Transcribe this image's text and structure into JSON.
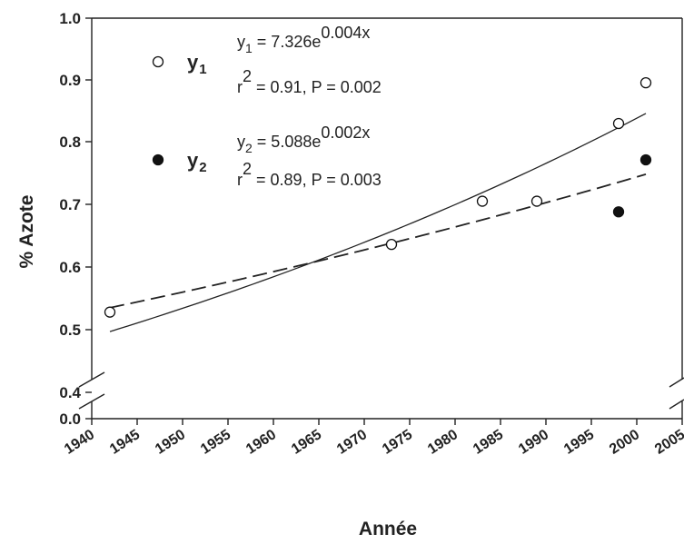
{
  "chart_data": {
    "type": "scatter",
    "xlabel": "Année",
    "ylabel": "% Azote",
    "xlim": [
      1940,
      2005
    ],
    "xticks": [
      "1940",
      "1945",
      "1950",
      "1955",
      "1960",
      "1965",
      "1970",
      "1975",
      "1980",
      "1985",
      "1990",
      "1995",
      "2000",
      "2005"
    ],
    "yticks": [
      "0.0",
      "0.4",
      "0.5",
      "0.6",
      "0.7",
      "0.8",
      "0.9",
      "1.0"
    ],
    "axis_break": [
      0.0,
      0.4
    ],
    "series": [
      {
        "name": "y1",
        "marker": "open-circle",
        "line": "solid",
        "points": [
          {
            "x": 1942,
            "y": 0.528
          },
          {
            "x": 1973,
            "y": 0.636
          },
          {
            "x": 1983,
            "y": 0.705
          },
          {
            "x": 1989,
            "y": 0.705
          },
          {
            "x": 1998,
            "y": 0.829
          },
          {
            "x": 2001,
            "y": 0.894
          }
        ],
        "fit": {
          "a": 7.326,
          "b": 0.004,
          "x0": 1942,
          "y0": 0.497,
          "x1": 2001,
          "y1": 0.845
        },
        "equation": {
          "lhs": "y",
          "sub": "1",
          "rhs": " = 7.326e",
          "exp": "0.004x"
        },
        "stats": {
          "r": "r",
          "sup": "2",
          "text": " = 0.91, P = 0.002"
        }
      },
      {
        "name": "y2",
        "marker": "filled-circle",
        "line": "dashed",
        "points": [
          {
            "x": 1998,
            "y": 0.688
          },
          {
            "x": 2001,
            "y": 0.771
          }
        ],
        "fit": {
          "a": 5.088,
          "b": 0.002,
          "x0": 1942,
          "y0": 0.535,
          "x1": 2001,
          "y1": 0.748
        },
        "equation": {
          "lhs": "y",
          "sub": "2",
          "rhs": " = 5.088e",
          "exp": "0.002x"
        },
        "stats": {
          "r": "r",
          "sup": "2",
          "text": " = 0.89, P = 0.003"
        }
      }
    ],
    "legend": [
      {
        "label": "y",
        "sub": "1",
        "marker": "open-circle"
      },
      {
        "label": "y",
        "sub": "2",
        "marker": "filled-circle"
      }
    ],
    "grid": false
  }
}
